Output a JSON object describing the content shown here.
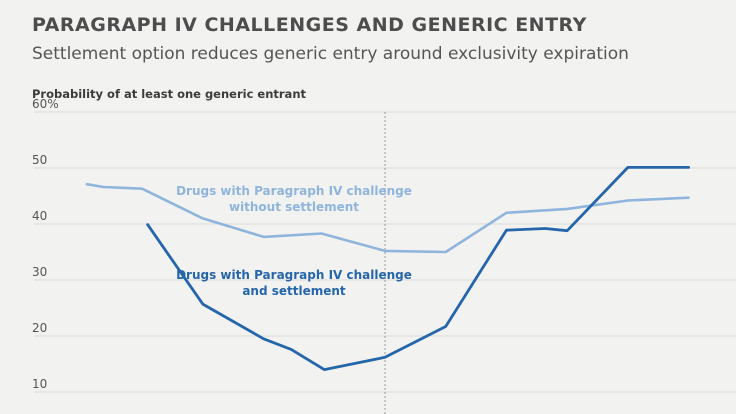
{
  "chart_data": {
    "type": "line",
    "title": "PARAGRAPH IV CHALLENGES AND GENERIC ENTRY",
    "subtitle": "Settlement option reduces generic entry around exclusivity expiration",
    "ylabel": "Probability of at least one generic entrant",
    "xlabel": "",
    "y_ticks": [
      "60%",
      "50",
      "40",
      "30",
      "20",
      "10"
    ],
    "y_tick_values": [
      60,
      50,
      40,
      30,
      20,
      10
    ],
    "ylim": [
      8,
      60
    ],
    "xlim": [
      -6.2,
      6.2
    ],
    "grid": "horizontal",
    "vertical_reference_line_x": 0,
    "series": [
      {
        "name": "Drugs with Paragraph IV challenge without settlement",
        "annotation_lines": [
          "Drugs with Paragraph IV challenge",
          "without settlement"
        ],
        "color": "#8fb5dc",
        "points": [
          [
            -5.4,
            47.1
          ],
          [
            -5.1,
            46.6
          ],
          [
            -4.4,
            46.3
          ],
          [
            -3.3,
            41.0
          ],
          [
            -2.2,
            37.7
          ],
          [
            -1.15,
            38.3
          ],
          [
            0,
            35.2
          ],
          [
            1.1,
            35.0
          ],
          [
            2.2,
            42.0
          ],
          [
            3.3,
            42.7
          ],
          [
            4.4,
            44.2
          ],
          [
            5.5,
            44.7
          ]
        ]
      },
      {
        "name": "Drugs with Paragraph IV challenge and settlement",
        "annotation_lines": [
          "Drugs with Paragraph IV challenge",
          "and settlement"
        ],
        "color": "#2566ab",
        "points": [
          [
            -4.3,
            39.9
          ],
          [
            -3.3,
            25.7
          ],
          [
            -2.2,
            19.5
          ],
          [
            -1.7,
            17.6
          ],
          [
            -1.1,
            14.0
          ],
          [
            0,
            16.2
          ],
          [
            1.1,
            21.7
          ],
          [
            2.2,
            38.9
          ],
          [
            2.9,
            39.2
          ],
          [
            3.3,
            38.8
          ],
          [
            4.4,
            50.1
          ],
          [
            5.5,
            50.1
          ]
        ]
      }
    ]
  }
}
